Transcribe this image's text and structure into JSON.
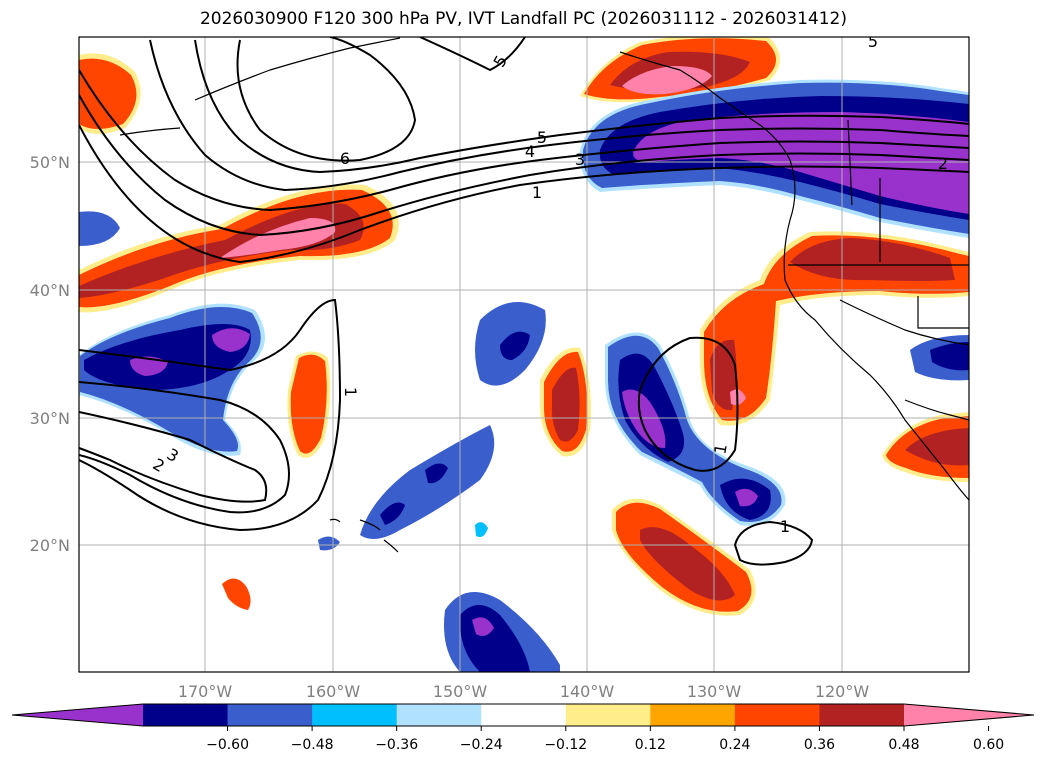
{
  "title": "2026030900 F120 300 hPa PV, IVT Landfall PC (2026031112 - 2026031412)",
  "lat_labels": [
    "50°N",
    "40°N",
    "30°N",
    "20°N"
  ],
  "lon_labels": [
    "170°W",
    "160°W",
    "150°W",
    "140°W",
    "130°W",
    "120°W"
  ],
  "colorbar": {
    "colors": [
      "#9932cc",
      "#00008b",
      "#3a5fcd",
      "#00bfff",
      "#b0e2ff",
      "#ffffff",
      "#ffec8b",
      "#ffa500",
      "#ff4500",
      "#b22222",
      "#ff82ab"
    ],
    "tick_labels": [
      "−0.60",
      "−0.48",
      "−0.36",
      "−0.24",
      "−0.12",
      "0.12",
      "0.24",
      "0.36",
      "0.48",
      "0.60"
    ]
  },
  "contour_labels": [
    "5",
    "6",
    "5",
    "4",
    "3",
    "1",
    "2",
    "5",
    "1",
    "3",
    "2",
    "1",
    "1"
  ]
}
